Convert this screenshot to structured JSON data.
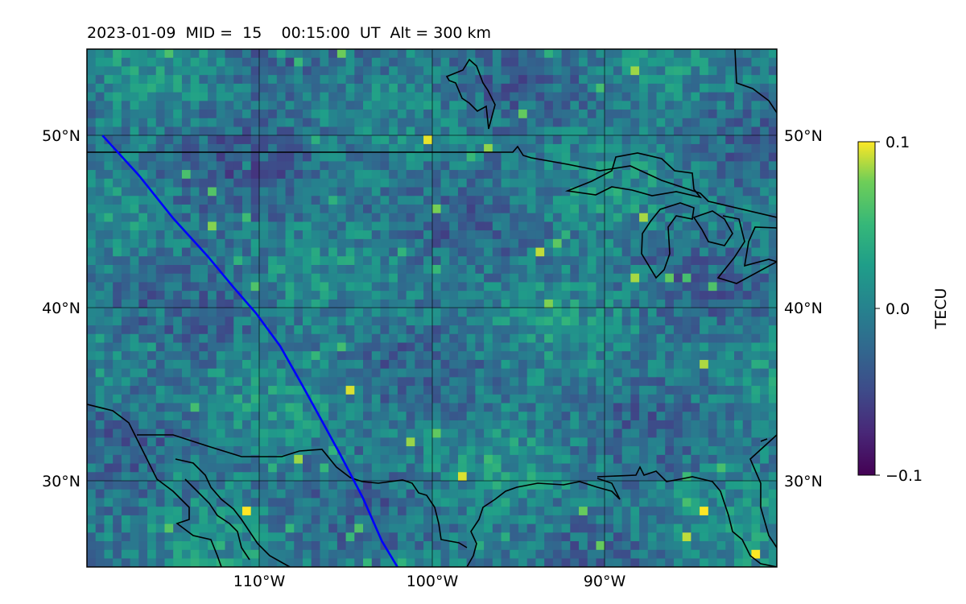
{
  "title": "2023-01-09  MID =  15    00:15:00  UT  Alt = 300 km",
  "map": {
    "lon_range": [
      -120,
      -80
    ],
    "lat_range": [
      25,
      55
    ],
    "lat_ticks": [
      {
        "value": 30,
        "label": "30°N"
      },
      {
        "value": 40,
        "label": "40°N"
      },
      {
        "value": 50,
        "label": "50°N"
      }
    ],
    "lon_ticks": [
      {
        "value": -110,
        "label": "110°W"
      },
      {
        "value": -100,
        "label": "100°W"
      },
      {
        "value": -90,
        "label": "90°W"
      }
    ],
    "grid": true,
    "track": {
      "color": "#0000ff",
      "points": [
        [
          -119.1,
          50.0
        ],
        [
          -117.0,
          47.7
        ],
        [
          -115.0,
          45.2
        ],
        [
          -113.0,
          43.0
        ],
        [
          -111.5,
          41.2
        ],
        [
          -110.2,
          39.7
        ],
        [
          -108.8,
          37.8
        ],
        [
          -107.5,
          35.5
        ],
        [
          -106.4,
          33.5
        ],
        [
          -105.3,
          31.5
        ],
        [
          -104.0,
          29.0
        ],
        [
          -102.9,
          26.5
        ],
        [
          -102.0,
          25.0
        ]
      ]
    }
  },
  "colorbar": {
    "label": "TECU",
    "min": -0.1,
    "max": 0.1,
    "ticks": [
      {
        "value": 0.1,
        "label": "0.1"
      },
      {
        "value": 0.0,
        "label": "0.0"
      },
      {
        "value": -0.1,
        "label": "−0.1"
      }
    ],
    "colormap": "viridis"
  },
  "colors": {
    "low": "#440154",
    "mid": "#21918c",
    "high": "#fde725"
  }
}
